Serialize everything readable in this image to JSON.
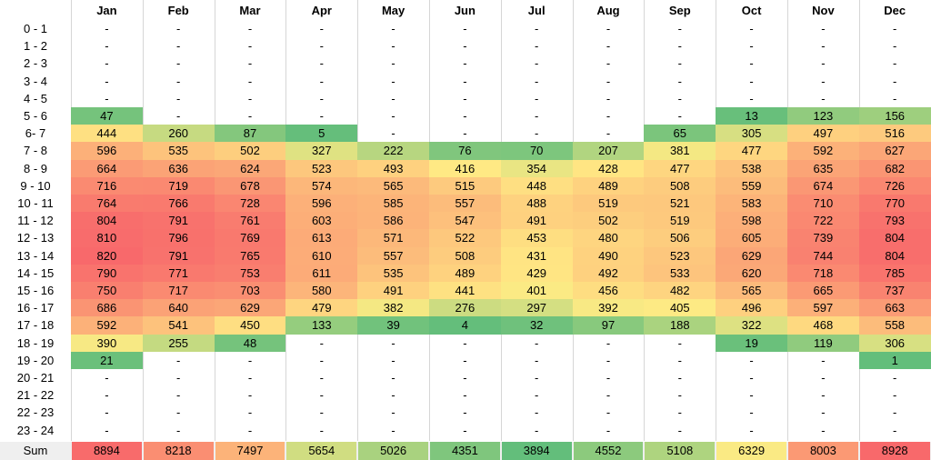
{
  "chart_data": {
    "type": "heatmap",
    "columns": [
      "Jan",
      "Feb",
      "Mar",
      "Apr",
      "May",
      "Jun",
      "Jul",
      "Aug",
      "Sep",
      "Oct",
      "Nov",
      "Dec"
    ],
    "rows": [
      {
        "label": "0 - 1",
        "values": [
          null,
          null,
          null,
          null,
          null,
          null,
          null,
          null,
          null,
          null,
          null,
          null
        ]
      },
      {
        "label": "1 - 2",
        "values": [
          null,
          null,
          null,
          null,
          null,
          null,
          null,
          null,
          null,
          null,
          null,
          null
        ]
      },
      {
        "label": "2 - 3",
        "values": [
          null,
          null,
          null,
          null,
          null,
          null,
          null,
          null,
          null,
          null,
          null,
          null
        ]
      },
      {
        "label": "3 - 4",
        "values": [
          null,
          null,
          null,
          null,
          null,
          null,
          null,
          null,
          null,
          null,
          null,
          null
        ]
      },
      {
        "label": "4 - 5",
        "values": [
          null,
          null,
          null,
          null,
          null,
          null,
          null,
          null,
          null,
          null,
          null,
          null
        ]
      },
      {
        "label": "5 - 6",
        "values": [
          47,
          null,
          null,
          null,
          null,
          null,
          null,
          null,
          null,
          13,
          123,
          156
        ]
      },
      {
        "label": "6- 7",
        "values": [
          444,
          260,
          87,
          5,
          null,
          null,
          null,
          null,
          65,
          305,
          497,
          516
        ]
      },
      {
        "label": "7 - 8",
        "values": [
          596,
          535,
          502,
          327,
          222,
          76,
          70,
          207,
          381,
          477,
          592,
          627
        ]
      },
      {
        "label": "8 - 9",
        "values": [
          664,
          636,
          624,
          523,
          493,
          416,
          354,
          428,
          477,
          538,
          635,
          682
        ]
      },
      {
        "label": "9 - 10",
        "values": [
          716,
          719,
          678,
          574,
          565,
          515,
          448,
          489,
          508,
          559,
          674,
          726
        ]
      },
      {
        "label": "10 - 11",
        "values": [
          764,
          766,
          728,
          596,
          585,
          557,
          488,
          519,
          521,
          583,
          710,
          770
        ]
      },
      {
        "label": "11 - 12",
        "values": [
          804,
          791,
          761,
          603,
          586,
          547,
          491,
          502,
          519,
          598,
          722,
          793
        ]
      },
      {
        "label": "12 - 13",
        "values": [
          810,
          796,
          769,
          613,
          571,
          522,
          453,
          480,
          506,
          605,
          739,
          804
        ]
      },
      {
        "label": "13 - 14",
        "values": [
          820,
          791,
          765,
          610,
          557,
          508,
          431,
          490,
          523,
          629,
          744,
          804
        ]
      },
      {
        "label": "14 - 15",
        "values": [
          790,
          771,
          753,
          611,
          535,
          489,
          429,
          492,
          533,
          620,
          718,
          785
        ]
      },
      {
        "label": "15 - 16",
        "values": [
          750,
          717,
          703,
          580,
          491,
          441,
          401,
          456,
          482,
          565,
          665,
          737
        ]
      },
      {
        "label": "16 - 17",
        "values": [
          686,
          640,
          629,
          479,
          382,
          276,
          297,
          392,
          405,
          496,
          597,
          663
        ]
      },
      {
        "label": "17 - 18",
        "values": [
          592,
          541,
          450,
          133,
          39,
          4,
          32,
          97,
          188,
          322,
          468,
          558
        ]
      },
      {
        "label": "18 - 19",
        "values": [
          390,
          255,
          48,
          null,
          null,
          null,
          null,
          null,
          null,
          19,
          119,
          306
        ]
      },
      {
        "label": "19 - 20",
        "values": [
          21,
          null,
          null,
          null,
          null,
          null,
          null,
          null,
          null,
          null,
          null,
          1
        ]
      },
      {
        "label": "20 - 21",
        "values": [
          null,
          null,
          null,
          null,
          null,
          null,
          null,
          null,
          null,
          null,
          null,
          null
        ]
      },
      {
        "label": "21 - 22",
        "values": [
          null,
          null,
          null,
          null,
          null,
          null,
          null,
          null,
          null,
          null,
          null,
          null
        ]
      },
      {
        "label": "22 - 23",
        "values": [
          null,
          null,
          null,
          null,
          null,
          null,
          null,
          null,
          null,
          null,
          null,
          null
        ]
      },
      {
        "label": "23 - 24",
        "values": [
          null,
          null,
          null,
          null,
          null,
          null,
          null,
          null,
          null,
          null,
          null,
          null
        ]
      }
    ],
    "empty_cell_text": "-",
    "sum_label": "Sum",
    "sums": [
      8894,
      8218,
      7497,
      5654,
      5026,
      4351,
      3894,
      4552,
      5108,
      6329,
      8003,
      8928
    ],
    "color_scale": {
      "low": "#63be7b",
      "mid": "#ffeb84",
      "high": "#f8696b"
    }
  }
}
